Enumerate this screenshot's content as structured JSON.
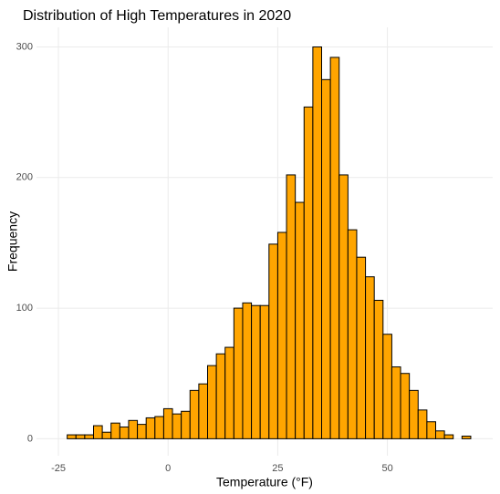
{
  "chart_data": {
    "type": "histogram",
    "title": "Distribution of High Temperatures in 2020",
    "x_label": "Temperature (°F)",
    "y_label": "Frequency",
    "bins": [
      -23,
      -21,
      -19,
      -17,
      -15,
      -13,
      -11,
      -9,
      -7,
      -5,
      -3,
      -1,
      1,
      3,
      5,
      7,
      9,
      11,
      13,
      15,
      17,
      19,
      21,
      23,
      25,
      27,
      29,
      31,
      33,
      35,
      37,
      39,
      41,
      43,
      45,
      47,
      49,
      51,
      53,
      55,
      57,
      59,
      61,
      63,
      65,
      67,
      69
    ],
    "counts": [
      3,
      3,
      3,
      10,
      5,
      12,
      9,
      14,
      11,
      16,
      17,
      23,
      19,
      21,
      37,
      42,
      56,
      65,
      70,
      100,
      104,
      102,
      102,
      149,
      158,
      202,
      181,
      254,
      300,
      275,
      292,
      202,
      160,
      139,
      124,
      106,
      80,
      55,
      50,
      37,
      22,
      13,
      6,
      3,
      0,
      2
    ],
    "color": "#ffa500",
    "edge_color": "#000000",
    "xlim": [
      -30,
      74
    ],
    "ylim": [
      -13,
      315
    ],
    "xticks": [
      -25,
      0,
      25,
      50
    ],
    "yticks": [
      0,
      100,
      200,
      300
    ],
    "grid": true
  }
}
